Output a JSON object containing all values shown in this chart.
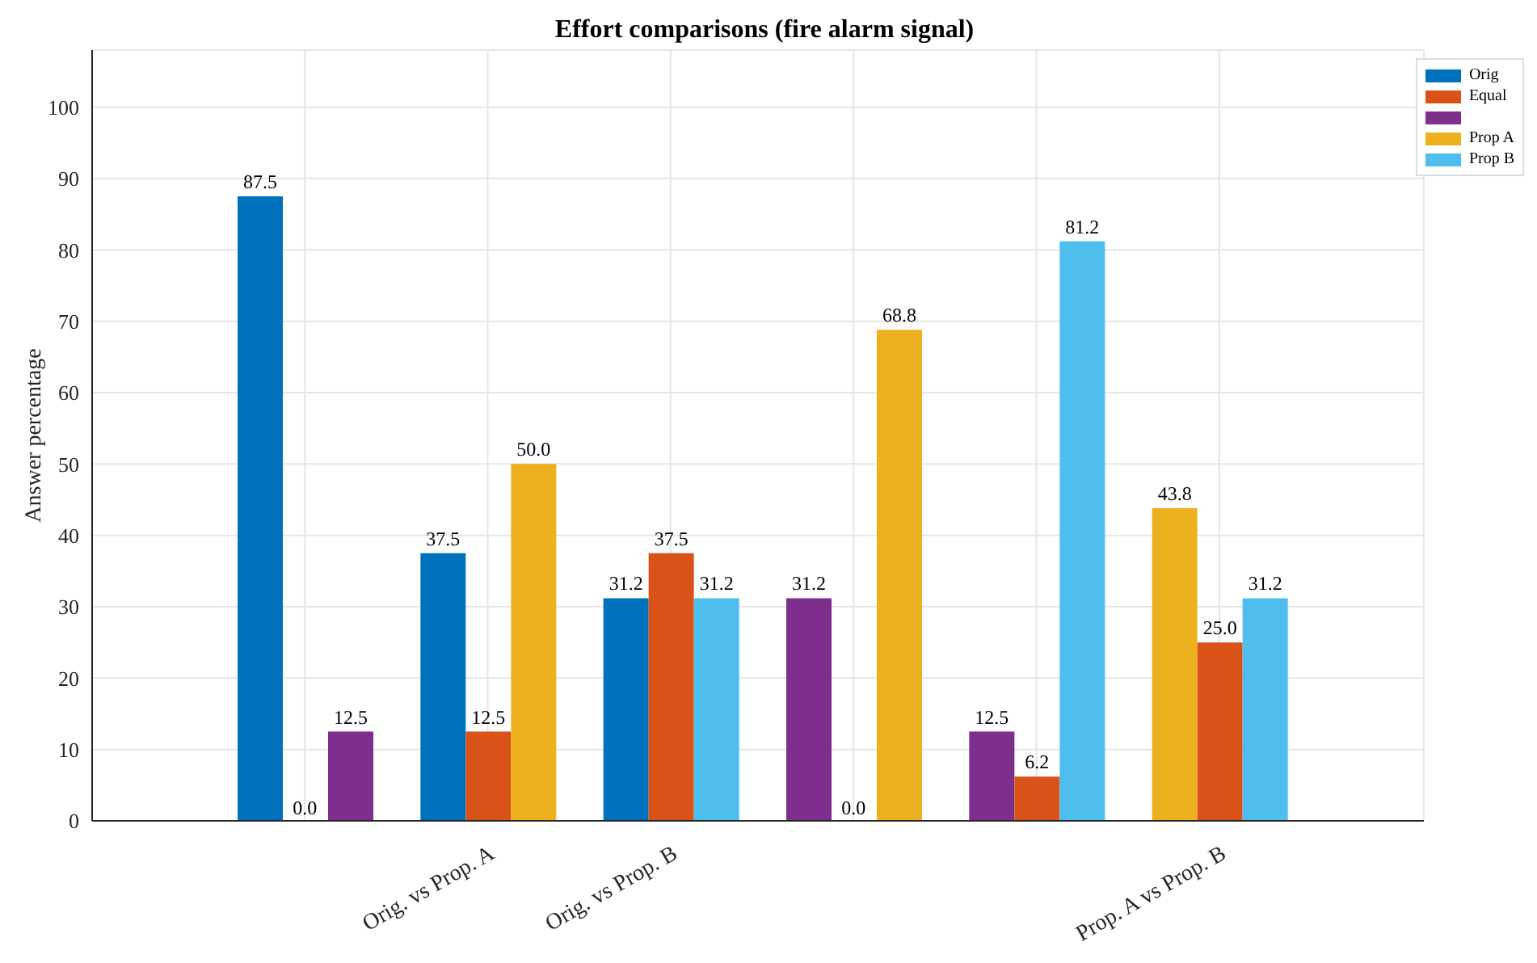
{
  "chart_data": {
    "type": "bar",
    "title": "Effort comparisons (fire alarm signal)",
    "ylabel": "Answer percentage",
    "categories": [
      null,
      "Orig. vs Prop. A",
      "Orig. vs Prop. B",
      null,
      null,
      "Prop. A vs Prop. B"
    ],
    "series": [
      {
        "name": "Orig",
        "color": "#0072bd",
        "values": [
          87.5,
          37.5,
          31.2,
          null,
          null,
          null
        ],
        "value_labels": [
          "87.5",
          "37.5",
          "31.2",
          null,
          null,
          null
        ]
      },
      {
        "name": "Equal",
        "color": "#d95319",
        "values": [
          0,
          12.5,
          37.5,
          0,
          6.2,
          25.0
        ],
        "value_labels": [
          "0.0",
          "12.5",
          "37.5",
          "0.0",
          "6.2",
          "25.0"
        ]
      },
      {
        "color": "#7e2f8e",
        "values": [
          12.5,
          null,
          null,
          31.2,
          12.5,
          null
        ],
        "value_labels": [
          "12.5",
          null,
          null,
          "31.2",
          "12.5",
          null
        ]
      },
      {
        "name": "Prop A",
        "color": "#edb120",
        "values": [
          null,
          50.0,
          null,
          68.8,
          null,
          43.8
        ],
        "value_labels": [
          null,
          "50.0",
          null,
          "68.8",
          null,
          "43.8"
        ]
      },
      {
        "name": "Prop B",
        "color": "#4dbeee",
        "values": [
          null,
          null,
          31.2,
          null,
          81.2,
          31.2
        ],
        "value_labels": [
          null,
          null,
          "31.2",
          null,
          "81.2",
          "31.2"
        ]
      }
    ],
    "ylim": [
      0,
      108
    ],
    "yticks": [
      0,
      10,
      20,
      30,
      40,
      50,
      60,
      70,
      80,
      90,
      100
    ],
    "grid": true,
    "legend": "top right"
  }
}
